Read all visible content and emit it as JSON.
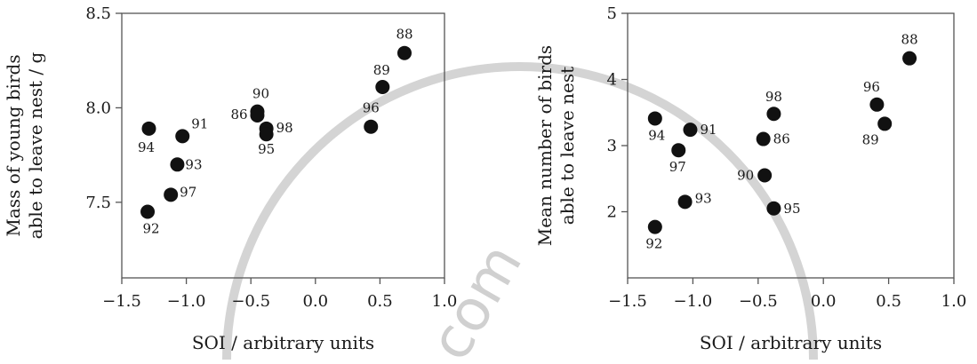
{
  "watermark": {
    "text": "com"
  },
  "chart_data": [
    {
      "type": "scatter",
      "title": "",
      "xlabel": "SOI / arbitrary units",
      "ylabel_lines": [
        "Mass of young birds",
        "able to leave nest / g"
      ],
      "xlim": [
        -1.5,
        1.0
      ],
      "ylim": [
        7.1,
        8.5
      ],
      "x_ticks": [
        -1.5,
        -1.0,
        -0.5,
        0.0,
        0.5,
        1.0
      ],
      "x_tick_labels": [
        "−1.5",
        "−1.0",
        "−0.5",
        "0.0",
        "0.5",
        "1.0"
      ],
      "y_ticks": [
        7.5,
        8.0,
        8.5
      ],
      "y_tick_labels": [
        "7.5",
        "8.0",
        "8.5"
      ],
      "grid": false,
      "series": [
        {
          "points": [
            {
              "label": "88",
              "x": 0.69,
              "y": 8.29
            },
            {
              "label": "89",
              "x": 0.52,
              "y": 8.11
            },
            {
              "label": "96",
              "x": 0.43,
              "y": 7.9
            },
            {
              "label": "90",
              "x": -0.45,
              "y": 7.98
            },
            {
              "label": "86",
              "x": -0.45,
              "y": 7.96
            },
            {
              "label": "98",
              "x": -0.38,
              "y": 7.89
            },
            {
              "label": "95",
              "x": -0.38,
              "y": 7.86
            },
            {
              "label": "91",
              "x": -1.03,
              "y": 7.85
            },
            {
              "label": "94",
              "x": -1.29,
              "y": 7.89
            },
            {
              "label": "93",
              "x": -1.07,
              "y": 7.7
            },
            {
              "label": "97",
              "x": -1.12,
              "y": 7.54
            },
            {
              "label": "92",
              "x": -1.3,
              "y": 7.45
            }
          ]
        }
      ]
    },
    {
      "type": "scatter",
      "title": "",
      "xlabel": "SOI / arbitrary units",
      "ylabel_lines": [
        "Mean number of birds",
        "able to leave nest"
      ],
      "xlim": [
        -1.5,
        1.0
      ],
      "ylim": [
        1.0,
        5.0
      ],
      "x_ticks": [
        -1.5,
        -1.0,
        -0.5,
        0.0,
        0.5,
        1.0
      ],
      "x_tick_labels": [
        "−1.5",
        "−1.0",
        "−0.5",
        "0.0",
        "0.5",
        "1.0"
      ],
      "y_ticks": [
        2,
        3,
        4,
        5
      ],
      "y_tick_labels": [
        "2",
        "3",
        "4",
        "5"
      ],
      "grid": false,
      "series": [
        {
          "points": [
            {
              "label": "88",
              "x": 0.66,
              "y": 4.32
            },
            {
              "label": "96",
              "x": 0.41,
              "y": 3.62
            },
            {
              "label": "89",
              "x": 0.47,
              "y": 3.33
            },
            {
              "label": "98",
              "x": -0.38,
              "y": 3.48
            },
            {
              "label": "86",
              "x": -0.46,
              "y": 3.1
            },
            {
              "label": "90",
              "x": -0.45,
              "y": 2.55
            },
            {
              "label": "95",
              "x": -0.38,
              "y": 2.05
            },
            {
              "label": "91",
              "x": -1.02,
              "y": 3.24
            },
            {
              "label": "94",
              "x": -1.29,
              "y": 3.41
            },
            {
              "label": "97",
              "x": -1.11,
              "y": 2.93
            },
            {
              "label": "93",
              "x": -1.06,
              "y": 2.15
            },
            {
              "label": "92",
              "x": -1.29,
              "y": 1.77
            }
          ]
        }
      ]
    }
  ]
}
